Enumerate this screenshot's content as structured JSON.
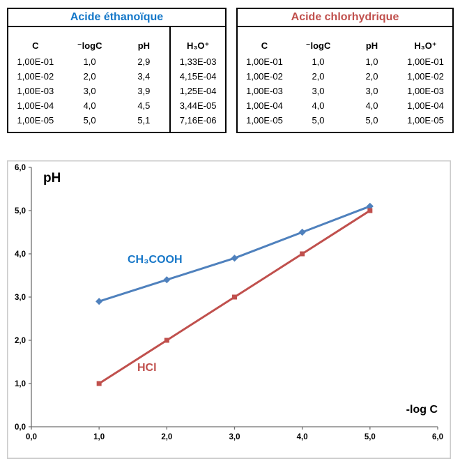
{
  "tables": [
    {
      "title": "Acide éthanoïque",
      "title_color": "#1477C8",
      "columns": [
        "C",
        "⁻logC",
        "pH",
        "H₃O⁺"
      ],
      "rows": [
        [
          "1,00E-01",
          "1,0",
          "2,9",
          "1,33E-03"
        ],
        [
          "1,00E-02",
          "2,0",
          "3,4",
          "4,15E-04"
        ],
        [
          "1,00E-03",
          "3,0",
          "3,9",
          "1,25E-04"
        ],
        [
          "1,00E-04",
          "4,0",
          "4,5",
          "3,44E-05"
        ],
        [
          "1,00E-05",
          "5,0",
          "5,1",
          "7,16E-06"
        ]
      ],
      "divider_before_last_column": true
    },
    {
      "title": "Acide chlorhydrique",
      "title_color": "#C0504D",
      "columns": [
        "C",
        "⁻logC",
        "pH",
        "H₃O⁺"
      ],
      "rows": [
        [
          "1,00E-01",
          "1,0",
          "1,0",
          "1,00E-01"
        ],
        [
          "1,00E-02",
          "2,0",
          "2,0",
          "1,00E-02"
        ],
        [
          "1,00E-03",
          "3,0",
          "3,0",
          "1,00E-03"
        ],
        [
          "1,00E-04",
          "4,0",
          "4,0",
          "1,00E-04"
        ],
        [
          "1,00E-05",
          "5,0",
          "5,0",
          "1,00E-05"
        ]
      ],
      "divider_before_last_column": false
    }
  ],
  "chart_data": {
    "type": "line",
    "x": [
      1.0,
      2.0,
      3.0,
      4.0,
      5.0
    ],
    "series": [
      {
        "name": "CH₃COOH",
        "values": [
          2.9,
          3.4,
          3.9,
          4.5,
          5.1
        ],
        "color": "#4F81BD",
        "label_color": "#1777C8",
        "marker": "diamond"
      },
      {
        "name": "HCl",
        "values": [
          1.0,
          2.0,
          3.0,
          4.0,
          5.0
        ],
        "color": "#C0504D",
        "label_color": "#C0504D",
        "marker": "square"
      }
    ],
    "ylabel": "pH",
    "xlabel": "-log C",
    "xlim": [
      0,
      6
    ],
    "ylim": [
      0,
      6
    ],
    "x_ticks": [
      "0,0",
      "1,0",
      "2,0",
      "3,0",
      "4,0",
      "5,0",
      "6,0"
    ],
    "y_ticks": [
      "0,0",
      "1,0",
      "2,0",
      "3,0",
      "4,0",
      "5,0",
      "6,0"
    ],
    "grid": false,
    "legend": "inline-labels",
    "axis_color": "#707070",
    "border_color": "#CBCBCB"
  }
}
